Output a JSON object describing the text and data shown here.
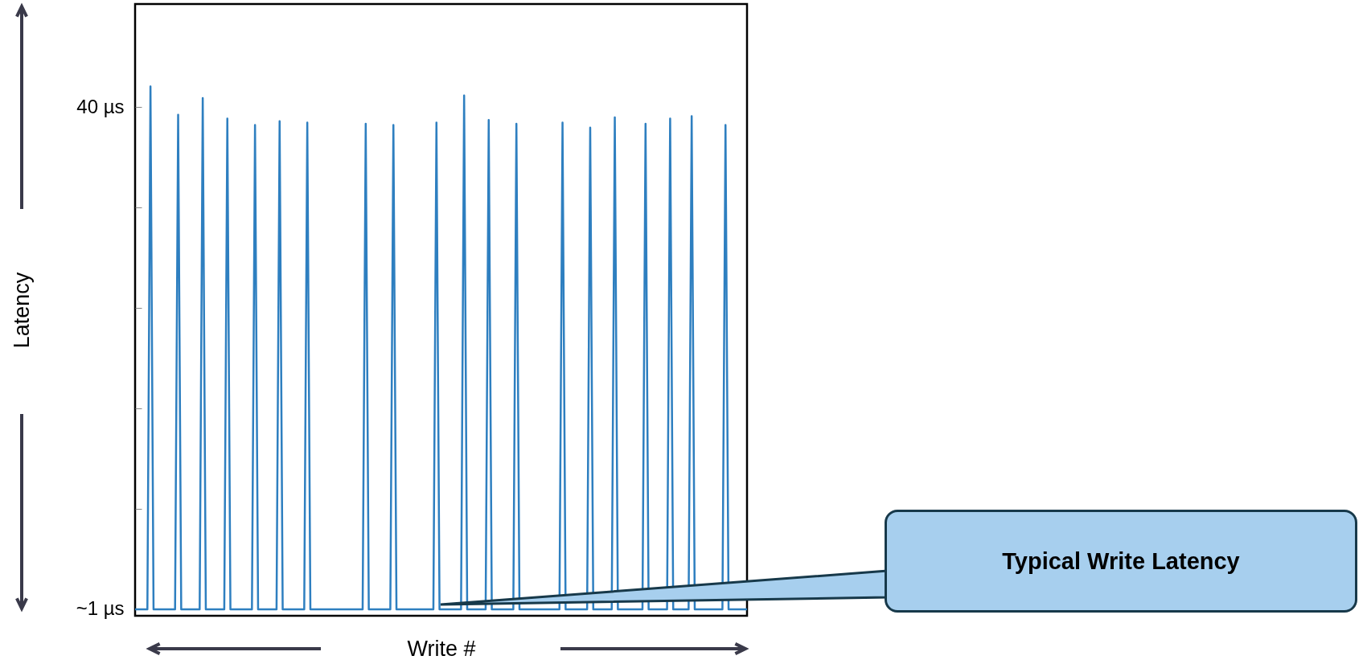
{
  "chart_data": {
    "type": "line",
    "xlabel": "Write #",
    "ylabel": "Latency",
    "ylim": [
      0.5,
      48
    ],
    "yticks": [
      {
        "value": 1,
        "label": "~1 µs"
      },
      {
        "value": 8.8,
        "label": null
      },
      {
        "value": 16.6,
        "label": null
      },
      {
        "value": 24.4,
        "label": null
      },
      {
        "value": 32.2,
        "label": null
      },
      {
        "value": 40,
        "label": "40 µs"
      }
    ],
    "tick_labels": "y",
    "grid": false,
    "annotations": [
      "Typical Write Latency"
    ],
    "categories": [
      null,
      null,
      null,
      null,
      null,
      null,
      null,
      null,
      null,
      null,
      null,
      null,
      null,
      null,
      null,
      null,
      null,
      null,
      null,
      null,
      null,
      null,
      null,
      null,
      null,
      null,
      null,
      null,
      null,
      null,
      null,
      null,
      null,
      null,
      null,
      null,
      null,
      null,
      null,
      null,
      null,
      null,
      null,
      null,
      null,
      null,
      null,
      null,
      null,
      null,
      null,
      null,
      null,
      null,
      null,
      null,
      null,
      null,
      null,
      null,
      null,
      null,
      null,
      null,
      null,
      null,
      null,
      null,
      null,
      null,
      null,
      null,
      null,
      null,
      null,
      null,
      null,
      null,
      null,
      null,
      null,
      null,
      null,
      null,
      null,
      null,
      null,
      null,
      null,
      null,
      null,
      null,
      null,
      null,
      null,
      null,
      null,
      null,
      null,
      null,
      null,
      null,
      null,
      null,
      null,
      null,
      null,
      null,
      null,
      null,
      null,
      null,
      null,
      null,
      null,
      null,
      null,
      null,
      null,
      null,
      null,
      null,
      null,
      null,
      null,
      null,
      null,
      null,
      null,
      null,
      null,
      null,
      null,
      null,
      null,
      null,
      null,
      null,
      null,
      null,
      null,
      null,
      null,
      null,
      null,
      null,
      null,
      null,
      null,
      null,
      null,
      null,
      null,
      null,
      null,
      null,
      null,
      null,
      null,
      null,
      null,
      null,
      null,
      null,
      null,
      null,
      null,
      null,
      null,
      null,
      null,
      null,
      null,
      null,
      null,
      null,
      null,
      null,
      null,
      null,
      null,
      null,
      null,
      null,
      null,
      null,
      null,
      null,
      null,
      null,
      null,
      null,
      null,
      null,
      null,
      null,
      null,
      null,
      null,
      null
    ],
    "series": [
      {
        "color": "#2e7fc0",
        "values": [
          1,
          1,
          1,
          1,
          1,
          41.6,
          1,
          1,
          1,
          1,
          1,
          1,
          1,
          1,
          39.4,
          1,
          1,
          1,
          1,
          1,
          1,
          1,
          40.7,
          1,
          1,
          1,
          1,
          1,
          1,
          1,
          39.1,
          1,
          1,
          1,
          1,
          1,
          1,
          1,
          1,
          38.6,
          1,
          1,
          1,
          1,
          1,
          1,
          1,
          38.9,
          1,
          1,
          1,
          1,
          1,
          1,
          1,
          1,
          38.8,
          1,
          1,
          1,
          1,
          1,
          1,
          1,
          1,
          1,
          1,
          1,
          1,
          1,
          1,
          1,
          1,
          1,
          1,
          38.7,
          1,
          1,
          1,
          1,
          1,
          1,
          1,
          1,
          38.6,
          1,
          1,
          1,
          1,
          1,
          1,
          1,
          1,
          1,
          1,
          1,
          1,
          1,
          38.8,
          1,
          1,
          1,
          1,
          1,
          1,
          1,
          1,
          40.9,
          1,
          1,
          1,
          1,
          1,
          1,
          1,
          39.0,
          1,
          1,
          1,
          1,
          1,
          1,
          1,
          1,
          38.7,
          1,
          1,
          1,
          1,
          1,
          1,
          1,
          1,
          1,
          1,
          1,
          1,
          1,
          1,
          38.8,
          1,
          1,
          1,
          1,
          1,
          1,
          1,
          1,
          38.4,
          1,
          1,
          1,
          1,
          1,
          1,
          1,
          39.2,
          1,
          1,
          1,
          1,
          1,
          1,
          1,
          1,
          1,
          38.7,
          1,
          1,
          1,
          1,
          1,
          1,
          1,
          39.1,
          1,
          1,
          1,
          1,
          1,
          1,
          39.3,
          1,
          1,
          1,
          1,
          1,
          1,
          1,
          1,
          1,
          1,
          38.6,
          1,
          1,
          1,
          1,
          1,
          1,
          1
        ]
      }
    ]
  }
}
